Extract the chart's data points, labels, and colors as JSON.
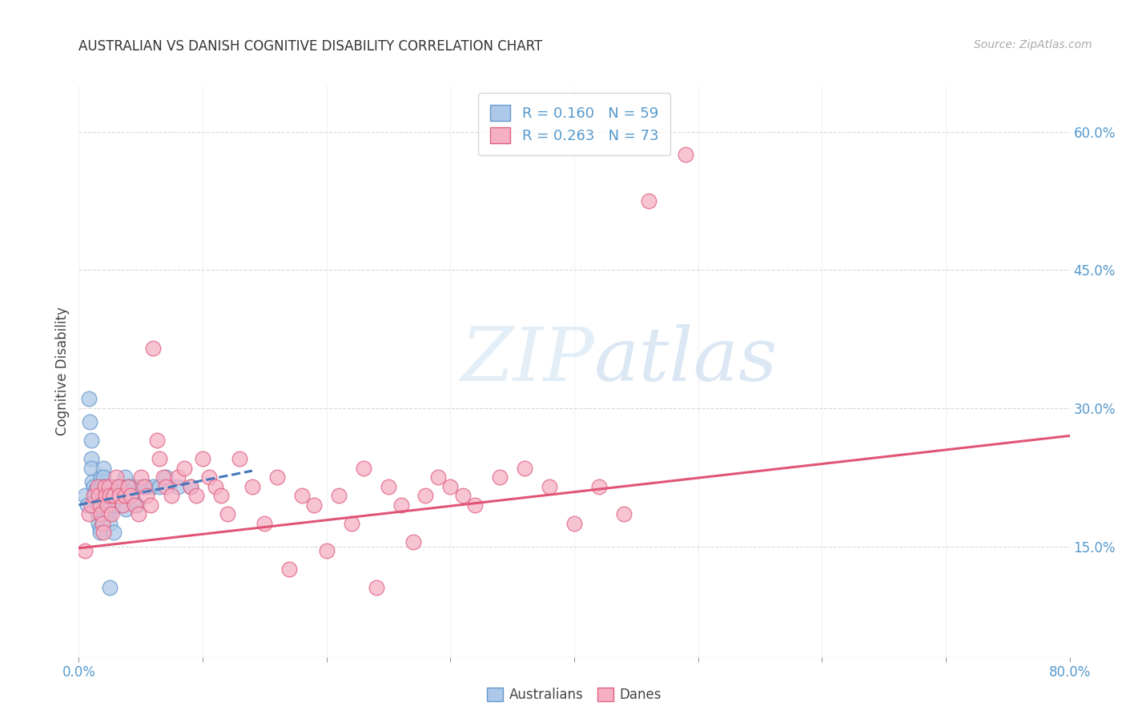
{
  "title": "AUSTRALIAN VS DANISH COGNITIVE DISABILITY CORRELATION CHART",
  "source": "Source: ZipAtlas.com",
  "ylabel": "Cognitive Disability",
  "x_min": 0.0,
  "x_max": 0.8,
  "y_min": 0.03,
  "y_max": 0.65,
  "x_ticks_show": [
    0.0,
    0.8
  ],
  "x_ticks_minor": [
    0.1,
    0.2,
    0.3,
    0.4,
    0.5,
    0.6,
    0.7
  ],
  "y_ticks_right": [
    0.15,
    0.3,
    0.45,
    0.6
  ],
  "y_tick_labels_right": [
    "15.0%",
    "30.0%",
    "45.0%",
    "60.0%"
  ],
  "x_tick_labels_show": [
    "0.0%",
    "80.0%"
  ],
  "aus_color": "#adc8e8",
  "aus_edge_color": "#6699cc",
  "dane_color": "#f5b0c5",
  "dane_edge_color": "#e06080",
  "aus_R": 0.16,
  "aus_N": 59,
  "dane_R": 0.263,
  "dane_N": 73,
  "trendline_aus_color": "#4477bb",
  "trendline_dane_color": "#e05575",
  "watermark_zip": "ZIP",
  "watermark_atlas": "atlas",
  "legend_label_aus": "Australians",
  "legend_label_dane": "Danes",
  "background_color": "#ffffff",
  "grid_color": "#d8d8d8",
  "aus_scatter_x": [
    0.005,
    0.007,
    0.008,
    0.009,
    0.01,
    0.01,
    0.01,
    0.011,
    0.012,
    0.013,
    0.013,
    0.014,
    0.015,
    0.015,
    0.016,
    0.016,
    0.017,
    0.017,
    0.018,
    0.018,
    0.019,
    0.019,
    0.02,
    0.02,
    0.02,
    0.021,
    0.021,
    0.022,
    0.022,
    0.023,
    0.023,
    0.024,
    0.024,
    0.025,
    0.025,
    0.026,
    0.027,
    0.027,
    0.028,
    0.029,
    0.03,
    0.031,
    0.032,
    0.033,
    0.035,
    0.037,
    0.038,
    0.04,
    0.042,
    0.043,
    0.045,
    0.047,
    0.05,
    0.055,
    0.06,
    0.065,
    0.07,
    0.08,
    0.09
  ],
  "aus_scatter_y": [
    0.205,
    0.195,
    0.31,
    0.285,
    0.265,
    0.245,
    0.235,
    0.22,
    0.215,
    0.21,
    0.205,
    0.2,
    0.195,
    0.185,
    0.185,
    0.175,
    0.17,
    0.165,
    0.225,
    0.215,
    0.205,
    0.195,
    0.235,
    0.225,
    0.215,
    0.205,
    0.2,
    0.195,
    0.185,
    0.205,
    0.195,
    0.19,
    0.185,
    0.175,
    0.105,
    0.205,
    0.215,
    0.195,
    0.165,
    0.195,
    0.215,
    0.205,
    0.195,
    0.215,
    0.215,
    0.225,
    0.19,
    0.215,
    0.215,
    0.2,
    0.215,
    0.195,
    0.215,
    0.215,
    0.215,
    0.215,
    0.225,
    0.215,
    0.215
  ],
  "dane_scatter_x": [
    0.005,
    0.008,
    0.01,
    0.012,
    0.015,
    0.016,
    0.017,
    0.018,
    0.019,
    0.02,
    0.021,
    0.022,
    0.023,
    0.024,
    0.025,
    0.026,
    0.028,
    0.03,
    0.032,
    0.033,
    0.035,
    0.037,
    0.04,
    0.042,
    0.045,
    0.048,
    0.05,
    0.053,
    0.055,
    0.058,
    0.06,
    0.063,
    0.065,
    0.068,
    0.07,
    0.075,
    0.08,
    0.085,
    0.09,
    0.095,
    0.1,
    0.105,
    0.11,
    0.115,
    0.12,
    0.13,
    0.14,
    0.15,
    0.16,
    0.17,
    0.18,
    0.19,
    0.2,
    0.21,
    0.22,
    0.23,
    0.24,
    0.25,
    0.26,
    0.27,
    0.28,
    0.29,
    0.3,
    0.31,
    0.32,
    0.34,
    0.36,
    0.38,
    0.4,
    0.42,
    0.44,
    0.46,
    0.49
  ],
  "dane_scatter_y": [
    0.145,
    0.185,
    0.195,
    0.205,
    0.215,
    0.205,
    0.195,
    0.185,
    0.175,
    0.165,
    0.215,
    0.205,
    0.195,
    0.215,
    0.205,
    0.185,
    0.205,
    0.225,
    0.215,
    0.205,
    0.195,
    0.205,
    0.215,
    0.205,
    0.195,
    0.185,
    0.225,
    0.215,
    0.205,
    0.195,
    0.365,
    0.265,
    0.245,
    0.225,
    0.215,
    0.205,
    0.225,
    0.235,
    0.215,
    0.205,
    0.245,
    0.225,
    0.215,
    0.205,
    0.185,
    0.245,
    0.215,
    0.175,
    0.225,
    0.125,
    0.205,
    0.195,
    0.145,
    0.205,
    0.175,
    0.235,
    0.105,
    0.215,
    0.195,
    0.155,
    0.205,
    0.225,
    0.215,
    0.205,
    0.195,
    0.225,
    0.235,
    0.215,
    0.175,
    0.215,
    0.185,
    0.525,
    0.575
  ],
  "trendline_aus_start_x": 0.0,
  "trendline_aus_start_y": 0.195,
  "trendline_aus_end_x": 0.14,
  "trendline_aus_end_y": 0.232,
  "trendline_dane_start_x": 0.0,
  "trendline_dane_start_y": 0.148,
  "trendline_dane_end_x": 0.8,
  "trendline_dane_end_y": 0.27
}
